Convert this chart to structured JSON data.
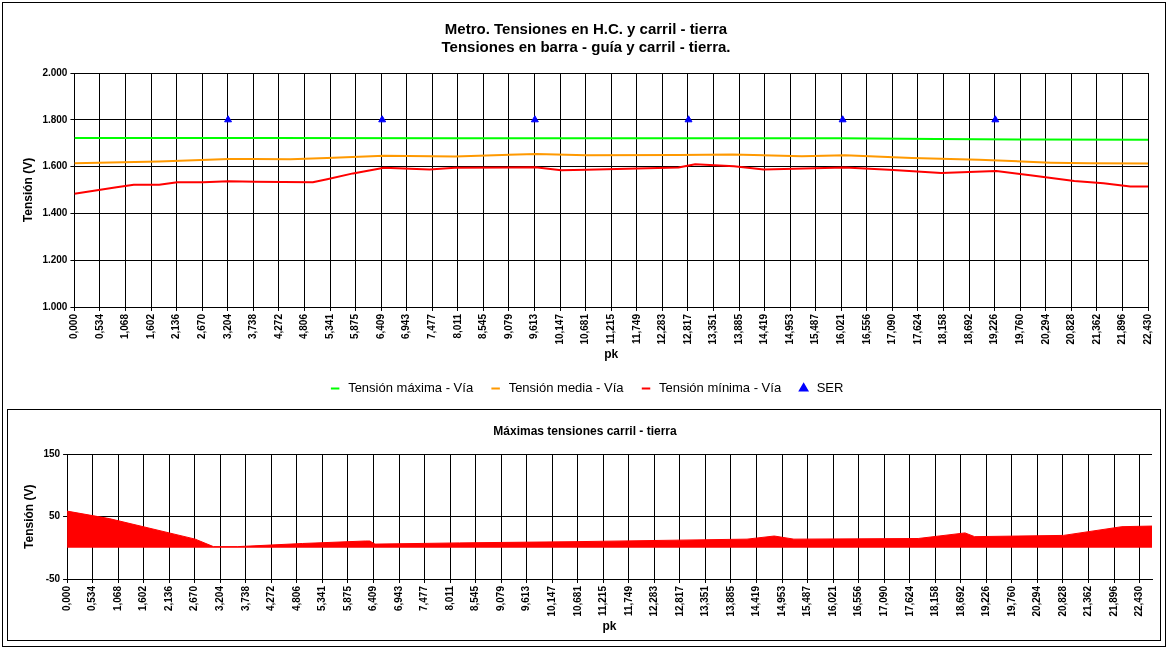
{
  "chart_data": [
    {
      "type": "line",
      "title": "Metro. Tensiones en H.C. y carril - tierra\nTensiones en barra - guía y carril - tierra.",
      "xlabel": "pk",
      "ylabel": "Tensión (V)",
      "xlim": [
        0,
        22.43
      ],
      "ylim": [
        1000,
        2000
      ],
      "xticks": [
        {
          "value": 0,
          "label": "0,000"
        },
        {
          "value": 0.534,
          "label": "0,534"
        },
        {
          "value": 1.068,
          "label": "1,068"
        },
        {
          "value": 1.602,
          "label": "1,602"
        },
        {
          "value": 2.136,
          "label": "2,136"
        },
        {
          "value": 2.67,
          "label": "2,670"
        },
        {
          "value": 3.204,
          "label": "3,204"
        },
        {
          "value": 3.738,
          "label": "3,738"
        },
        {
          "value": 4.272,
          "label": "4,272"
        },
        {
          "value": 4.806,
          "label": "4,806"
        },
        {
          "value": 5.341,
          "label": "5,341"
        },
        {
          "value": 5.875,
          "label": "5,875"
        },
        {
          "value": 6.409,
          "label": "6,409"
        },
        {
          "value": 6.943,
          "label": "6,943"
        },
        {
          "value": 7.477,
          "label": "7,477"
        },
        {
          "value": 8.011,
          "label": "8,011"
        },
        {
          "value": 8.545,
          "label": "8,545"
        },
        {
          "value": 9.079,
          "label": "9,079"
        },
        {
          "value": 9.613,
          "label": "9,613"
        },
        {
          "value": 10.147,
          "label": "10,147"
        },
        {
          "value": 10.681,
          "label": "10,681"
        },
        {
          "value": 11.215,
          "label": "11,215"
        },
        {
          "value": 11.749,
          "label": "11,749"
        },
        {
          "value": 12.283,
          "label": "12,283"
        },
        {
          "value": 12.817,
          "label": "12,817"
        },
        {
          "value": 13.351,
          "label": "13,351"
        },
        {
          "value": 13.885,
          "label": "13,885"
        },
        {
          "value": 14.419,
          "label": "14,419"
        },
        {
          "value": 14.953,
          "label": "14,953"
        },
        {
          "value": 15.487,
          "label": "15,487"
        },
        {
          "value": 16.021,
          "label": "16,021"
        },
        {
          "value": 16.556,
          "label": "16,556"
        },
        {
          "value": 17.09,
          "label": "17,090"
        },
        {
          "value": 17.624,
          "label": "17,624"
        },
        {
          "value": 18.158,
          "label": "18,158"
        },
        {
          "value": 18.692,
          "label": "18,692"
        },
        {
          "value": 19.226,
          "label": "19,226"
        },
        {
          "value": 19.76,
          "label": "19,760"
        },
        {
          "value": 20.294,
          "label": "20,294"
        },
        {
          "value": 20.828,
          "label": "20,828"
        },
        {
          "value": 21.362,
          "label": "21,362"
        },
        {
          "value": 21.896,
          "label": "21,896"
        },
        {
          "value": 22.43,
          "label": "22,430"
        }
      ],
      "yticks": [
        {
          "value": 1000,
          "label": "1.000"
        },
        {
          "value": 1200,
          "label": "1.200"
        },
        {
          "value": 1400,
          "label": "1.400"
        },
        {
          "value": 1600,
          "label": "1.600"
        },
        {
          "value": 1800,
          "label": "1.800"
        },
        {
          "value": 2000,
          "label": "2.000"
        }
      ],
      "grid": true,
      "legend": "bottom",
      "series": [
        {
          "name": "Tensión máxima - Vía",
          "color": "#00ff00",
          "x": [
            0,
            4,
            8,
            12,
            16,
            18,
            20,
            22.43
          ],
          "values": [
            1722,
            1722,
            1721,
            1721,
            1721,
            1718,
            1716,
            1715
          ]
        },
        {
          "name": "Tensión media - Vía",
          "color": "#ff9900",
          "x": [
            0,
            1.77,
            3.22,
            4.51,
            5.28,
            6.47,
            7.95,
            9.65,
            10.69,
            12.62,
            13.75,
            15.2,
            16.1,
            17.5,
            18.9,
            20.4,
            21.2,
            22.43
          ],
          "values": [
            1614,
            1622,
            1633,
            1631,
            1637,
            1646,
            1643,
            1654,
            1648,
            1650,
            1652,
            1644,
            1648,
            1637,
            1629,
            1617,
            1614,
            1613
          ]
        },
        {
          "name": "Tensión mínima - Vía",
          "color": "#ff0000",
          "x": [
            0,
            0.88,
            1.24,
            1.77,
            2.15,
            2.69,
            3.22,
            4.98,
            5.28,
            5.82,
            6.47,
            7.42,
            7.95,
            9.63,
            10.17,
            10.69,
            12.62,
            12.97,
            13.78,
            14.4,
            16.1,
            17.02,
            18.11,
            19.26,
            19.97,
            20.89,
            21.5,
            22.06,
            22.43
          ],
          "values": [
            1484,
            1512,
            1522,
            1522,
            1533,
            1533,
            1537,
            1533,
            1546,
            1571,
            1595,
            1588,
            1595,
            1597,
            1584,
            1587,
            1596,
            1610,
            1602,
            1588,
            1596,
            1587,
            1573,
            1581,
            1563,
            1538,
            1529,
            1515,
            1515
          ]
        },
        {
          "name": "SER",
          "type": "scatter",
          "color": "#0000ff",
          "marker": "triangle",
          "x": [
            3.21,
            6.43,
            9.62,
            12.83,
            16.05,
            19.24
          ],
          "values": [
            1800,
            1800,
            1800,
            1800,
            1800,
            1800
          ]
        }
      ]
    },
    {
      "type": "area",
      "title": "Máximas tensiones carril - tierra",
      "xlabel": "pk",
      "ylabel": "Tensión (V)",
      "xlim": [
        0,
        22.69
      ],
      "ylim": [
        -50,
        150
      ],
      "xticks": [
        {
          "value": 0,
          "label": "0,000"
        },
        {
          "value": 0.534,
          "label": "0,534"
        },
        {
          "value": 1.068,
          "label": "1,068"
        },
        {
          "value": 1.602,
          "label": "1,602"
        },
        {
          "value": 2.136,
          "label": "2,136"
        },
        {
          "value": 2.67,
          "label": "2,670"
        },
        {
          "value": 3.204,
          "label": "3,204"
        },
        {
          "value": 3.738,
          "label": "3,738"
        },
        {
          "value": 4.272,
          "label": "4,272"
        },
        {
          "value": 4.806,
          "label": "4,806"
        },
        {
          "value": 5.341,
          "label": "5,341"
        },
        {
          "value": 5.875,
          "label": "5,875"
        },
        {
          "value": 6.409,
          "label": "6,409"
        },
        {
          "value": 6.943,
          "label": "6,943"
        },
        {
          "value": 7.477,
          "label": "7,477"
        },
        {
          "value": 8.011,
          "label": "8,011"
        },
        {
          "value": 8.545,
          "label": "8,545"
        },
        {
          "value": 9.079,
          "label": "9,079"
        },
        {
          "value": 9.613,
          "label": "9,613"
        },
        {
          "value": 10.147,
          "label": "10,147"
        },
        {
          "value": 10.681,
          "label": "10,681"
        },
        {
          "value": 11.215,
          "label": "11,215"
        },
        {
          "value": 11.749,
          "label": "11,749"
        },
        {
          "value": 12.283,
          "label": "12,283"
        },
        {
          "value": 12.817,
          "label": "12,817"
        },
        {
          "value": 13.351,
          "label": "13,351"
        },
        {
          "value": 13.885,
          "label": "13,885"
        },
        {
          "value": 14.419,
          "label": "14,419"
        },
        {
          "value": 14.953,
          "label": "14,953"
        },
        {
          "value": 15.487,
          "label": "15,487"
        },
        {
          "value": 16.021,
          "label": "16,021"
        },
        {
          "value": 16.556,
          "label": "16,556"
        },
        {
          "value": 17.09,
          "label": "17,090"
        },
        {
          "value": 17.624,
          "label": "17,624"
        },
        {
          "value": 18.158,
          "label": "18,158"
        },
        {
          "value": 18.692,
          "label": "18,692"
        },
        {
          "value": 19.226,
          "label": "19,226"
        },
        {
          "value": 19.76,
          "label": "19,760"
        },
        {
          "value": 20.294,
          "label": "20,294"
        },
        {
          "value": 20.828,
          "label": "20,828"
        },
        {
          "value": 21.362,
          "label": "21,362"
        },
        {
          "value": 21.896,
          "label": "21,896"
        },
        {
          "value": 22.43,
          "label": "22,430"
        }
      ],
      "yticks": [
        -50,
        50,
        150
      ],
      "grid": true,
      "series": [
        {
          "color": "#ff0000",
          "x": [
            0,
            0.88,
            2.68,
            3.06,
            3.57,
            4.92,
            6.24,
            6.33,
            6.44,
            8.21,
            10.68,
            14.22,
            14.79,
            15.2,
            17.8,
            18.78,
            18.98,
            20.84,
            22.06,
            22.69
          ],
          "values": [
            59,
            47,
            14,
            2,
            2,
            7,
            11,
            11,
            6,
            8,
            10,
            14,
            19,
            14,
            15,
            24,
            18,
            20,
            34,
            35
          ]
        }
      ]
    }
  ]
}
